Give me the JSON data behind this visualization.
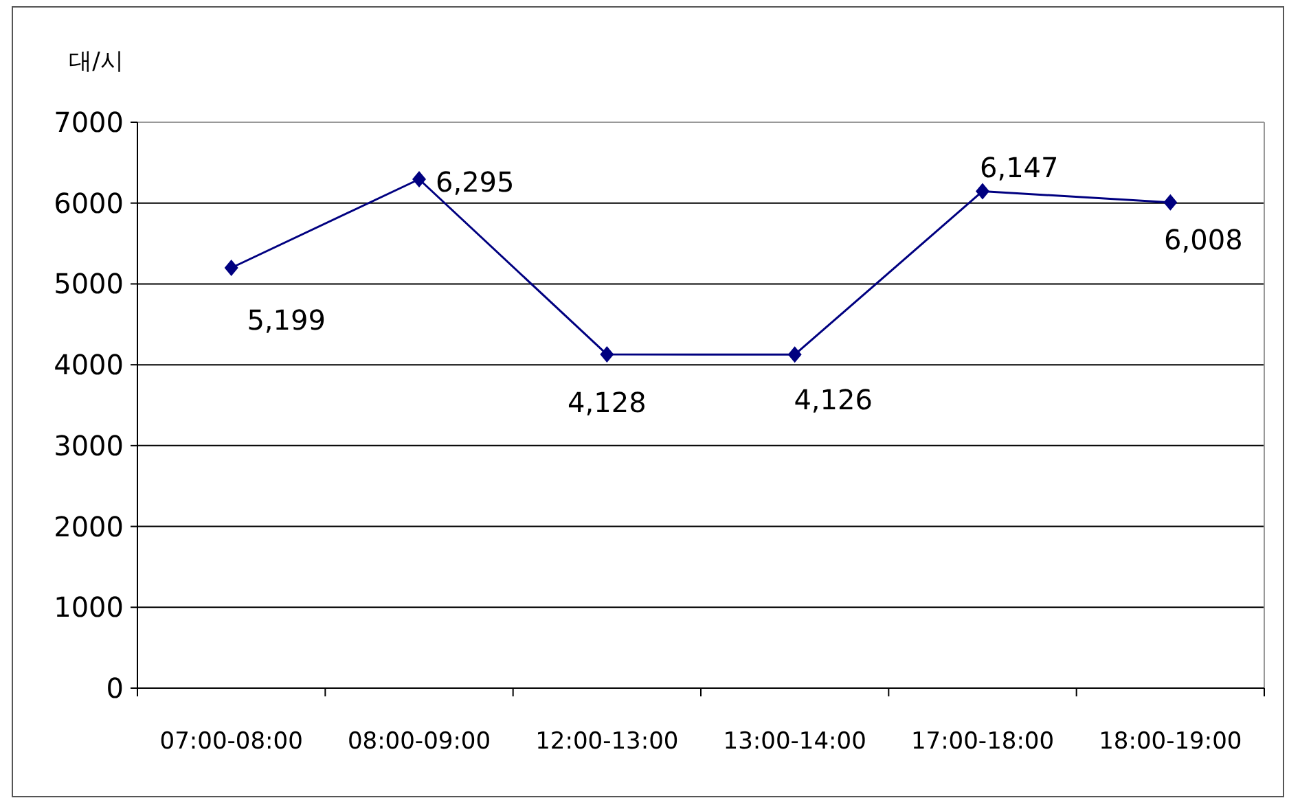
{
  "chart_data": {
    "type": "line",
    "ylabel": "대/시",
    "categories": [
      "07:00-08:00",
      "08:00-09:00",
      "12:00-13:00",
      "13:00-14:00",
      "17:00-18:00",
      "18:00-19:00"
    ],
    "values": [
      5199,
      6295,
      4128,
      4126,
      6147,
      6008
    ],
    "value_labels": [
      "5,199",
      "6,295",
      "4,128",
      "4,126",
      "6,147",
      "6,008"
    ],
    "color": "#000080",
    "marker": "diamond",
    "line_style": "solid",
    "ylim": [
      0,
      7000
    ],
    "yticks": [
      0,
      1000,
      2000,
      3000,
      4000,
      5000,
      6000,
      7000
    ],
    "grid": "y",
    "legend": false
  }
}
